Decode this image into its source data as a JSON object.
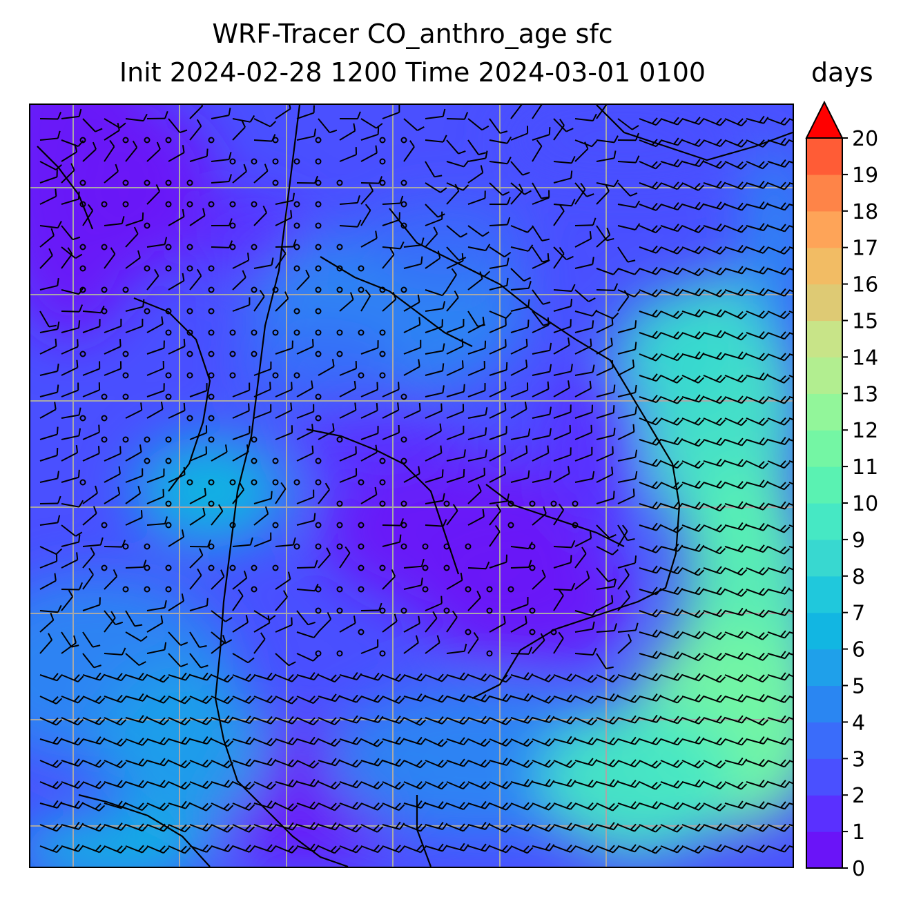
{
  "figure": {
    "title_line1": "WRF-Tracer CO_anthro_age sfc",
    "title_line2": "Init 2024-02-28 1200 Time 2024-03-01 0100",
    "units": "days"
  },
  "colorbar": {
    "min": 0,
    "max": 20,
    "extend": "max",
    "tick_labels": [
      "0",
      "1",
      "2",
      "3",
      "4",
      "5",
      "6",
      "7",
      "8",
      "9",
      "10",
      "11",
      "12",
      "13",
      "14",
      "15",
      "16",
      "17",
      "18",
      "19",
      "20"
    ],
    "colors": [
      "#6a14f8",
      "#5a30ff",
      "#4a50ff",
      "#3a6cfa",
      "#2a86f2",
      "#1fa0ea",
      "#12b6e2",
      "#20c8dc",
      "#38d8d0",
      "#46e8c4",
      "#5af2b2",
      "#74f6a4",
      "#92f69a",
      "#b2ee90",
      "#c8e488",
      "#deca74",
      "#f2bc64",
      "#fea458",
      "#fe8448",
      "#ff5c36",
      "#ff3020",
      "#ff1010"
    ],
    "extend_color": "#ff0000"
  },
  "map": {
    "gridlines": true,
    "gridline_color": "#a8a8a8",
    "coastline_color": "#000000",
    "field": "CO_anthro_age",
    "level": "sfc",
    "wind_barbs": true
  }
}
